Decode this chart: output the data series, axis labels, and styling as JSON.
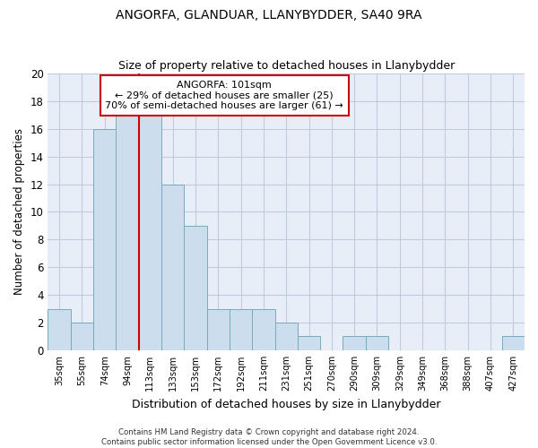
{
  "title": "ANGORFA, GLANDUAR, LLANYBYDDER, SA40 9RA",
  "subtitle": "Size of property relative to detached houses in Llanybydder",
  "xlabel": "Distribution of detached houses by size in Llanybydder",
  "ylabel": "Number of detached properties",
  "footer": "Contains HM Land Registry data © Crown copyright and database right 2024.\nContains public sector information licensed under the Open Government Licence v3.0.",
  "bar_labels": [
    "35sqm",
    "55sqm",
    "74sqm",
    "94sqm",
    "113sqm",
    "133sqm",
    "153sqm",
    "172sqm",
    "192sqm",
    "211sqm",
    "231sqm",
    "251sqm",
    "270sqm",
    "290sqm",
    "309sqm",
    "329sqm",
    "349sqm",
    "368sqm",
    "388sqm",
    "407sqm",
    "427sqm"
  ],
  "bar_values": [
    3,
    2,
    16,
    17,
    17,
    12,
    9,
    3,
    3,
    3,
    2,
    1,
    0,
    1,
    1,
    0,
    0,
    0,
    0,
    0,
    1
  ],
  "bar_color": "#ccdded",
  "bar_edge_color": "#7aaabb",
  "ylim": [
    0,
    20
  ],
  "yticks": [
    0,
    2,
    4,
    6,
    8,
    10,
    12,
    14,
    16,
    18,
    20
  ],
  "red_line_x": 3.5,
  "annotation_title": "ANGORFA: 101sqm",
  "annotation_line1": "← 29% of detached houses are smaller (25)",
  "annotation_line2": "70% of semi-detached houses are larger (61) →",
  "annotation_box_color": "#ffffff",
  "annotation_box_edge": "#cc0000",
  "grid_color": "#c0ccdd",
  "background_color": "#e8eef8"
}
